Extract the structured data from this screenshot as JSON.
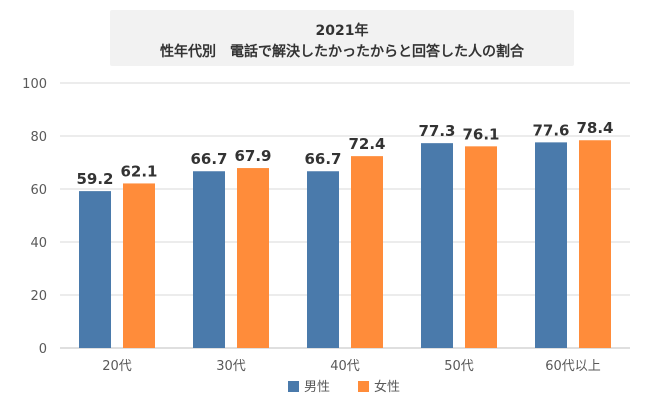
{
  "chart_data": {
    "type": "bar",
    "title_lines": [
      "2021年",
      "性年代別　電話で解決したかったからと回答した人の割合"
    ],
    "categories": [
      "20代",
      "30代",
      "40代",
      "50代",
      "60代以上"
    ],
    "series": [
      {
        "name": "男性",
        "color": "#4a7aab",
        "values": [
          59.2,
          66.7,
          66.7,
          77.3,
          77.6
        ],
        "labels": [
          "59.2",
          "66.7",
          "66.7",
          "77.3",
          "77.6"
        ]
      },
      {
        "name": "女性",
        "color": "#ff8c3a",
        "values": [
          62.1,
          67.9,
          72.4,
          76.1,
          78.4
        ],
        "labels": [
          "62.1",
          "67.9",
          "72.4",
          "76.1",
          "78.4"
        ]
      }
    ],
    "ylim": [
      0,
      100
    ],
    "yticks": [
      0,
      20,
      40,
      60,
      80,
      100
    ],
    "grid": true,
    "legend_position": "bottom"
  }
}
